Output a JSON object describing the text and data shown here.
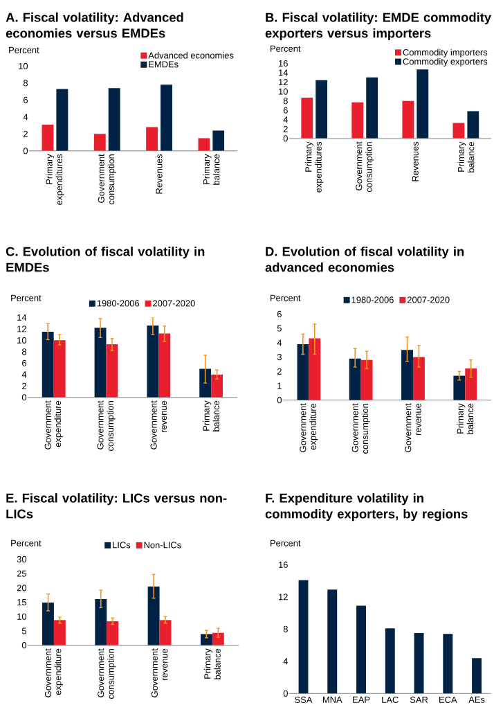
{
  "chart_data": [
    {
      "type": "bar",
      "title": "A. Fiscal volatility: Advanced economies versus EMDEs",
      "ylabel": "Percent",
      "categories": [
        "Primary expenditures",
        "Government consumption",
        "Revenues",
        "Primary balance"
      ],
      "series": [
        {
          "name": "Advanced economies",
          "color": "#e8202e",
          "values": [
            3.1,
            2.0,
            2.8,
            1.5
          ]
        },
        {
          "name": "EMDEs",
          "color": "#002345",
          "values": [
            7.3,
            7.4,
            7.8,
            2.4
          ]
        }
      ],
      "ylim": [
        0,
        10
      ],
      "yticks": [
        0,
        2,
        4,
        6,
        8,
        10
      ],
      "legend": "top right"
    },
    {
      "type": "bar",
      "title": "B. Fiscal volatility: EMDE commodity exporters versus importers",
      "ylabel": "Percent",
      "categories": [
        "Primary expenditures",
        "Government consumption",
        "Revenues",
        "Primary balance"
      ],
      "series": [
        {
          "name": "Commodity importers",
          "color": "#e8202e",
          "values": [
            8.7,
            7.7,
            8.0,
            3.3
          ]
        },
        {
          "name": "Commodity exporters",
          "color": "#002345",
          "values": [
            12.4,
            13.0,
            14.7,
            5.8
          ]
        }
      ],
      "ylim": [
        0,
        16
      ],
      "yticks": [
        0,
        2,
        4,
        6,
        8,
        10,
        12,
        14,
        16
      ],
      "legend": "top right"
    },
    {
      "type": "bar",
      "title": "C. Evolution of fiscal volatility in EMDEs",
      "ylabel": "Percent",
      "categories": [
        "Government expenditure",
        "Government consumption",
        "Government revenue",
        "Primary balance"
      ],
      "series": [
        {
          "name": "1980-2006",
          "color": "#002345",
          "values": [
            11.5,
            12.2,
            12.6,
            5.0
          ],
          "errors": [
            [
              10.1,
              12.9
            ],
            [
              10.5,
              13.8
            ],
            [
              11.0,
              14.0
            ],
            [
              2.5,
              7.4
            ]
          ]
        },
        {
          "name": "2007-2020",
          "color": "#e8202e",
          "values": [
            10.0,
            9.3,
            11.2,
            4.0
          ],
          "errors": [
            [
              9.2,
              11.0
            ],
            [
              8.2,
              10.3
            ],
            [
              9.8,
              12.5
            ],
            [
              3.2,
              4.8
            ]
          ]
        }
      ],
      "ylim": [
        0,
        14
      ],
      "yticks": [
        0,
        2,
        4,
        6,
        8,
        10,
        12,
        14
      ],
      "legend": "top"
    },
    {
      "type": "bar",
      "title": "D. Evolution of fiscal volatility in advanced economies",
      "ylabel": "Percent",
      "categories": [
        "Government expenditure",
        "Government consumption",
        "Government revenue",
        "Primary balance"
      ],
      "series": [
        {
          "name": "1980-2006",
          "color": "#002345",
          "values": [
            3.9,
            2.9,
            3.5,
            1.7
          ],
          "errors": [
            [
              3.2,
              4.6
            ],
            [
              2.3,
              3.6
            ],
            [
              2.7,
              4.4
            ],
            [
              1.4,
              2.0
            ]
          ]
        },
        {
          "name": "2007-2020",
          "color": "#e8202e",
          "values": [
            4.3,
            2.8,
            3.0,
            2.2
          ],
          "errors": [
            [
              3.2,
              5.3
            ],
            [
              2.2,
              3.4
            ],
            [
              2.3,
              3.8
            ],
            [
              1.6,
              2.8
            ]
          ]
        }
      ],
      "ylim": [
        0,
        6
      ],
      "yticks": [
        0,
        1,
        2,
        3,
        4,
        5,
        6
      ],
      "legend": "top"
    },
    {
      "type": "bar",
      "title": "E. Fiscal volatility: LICs versus non-LICs",
      "ylabel": "Percent",
      "categories": [
        "Government expenditure",
        "Government consumption",
        "Government revenue",
        "Primary balance"
      ],
      "series": [
        {
          "name": "LICs",
          "color": "#002345",
          "values": [
            14.9,
            16.1,
            20.5,
            3.9
          ],
          "errors": [
            [
              12.0,
              17.9
            ],
            [
              13.1,
              19.2
            ],
            [
              16.4,
              24.7
            ],
            [
              2.6,
              5.2
            ]
          ]
        },
        {
          "name": "Non-LICs",
          "color": "#e8202e",
          "values": [
            8.8,
            8.4,
            8.8,
            4.3
          ],
          "errors": [
            [
              7.7,
              9.8
            ],
            [
              7.3,
              9.5
            ],
            [
              7.7,
              10.0
            ],
            [
              2.8,
              5.9
            ]
          ]
        }
      ],
      "ylim": [
        0,
        30
      ],
      "yticks": [
        0,
        5,
        10,
        15,
        20,
        25,
        30
      ],
      "legend": "top"
    },
    {
      "type": "bar",
      "title": "F. Expenditure volatility in commodity exporters, by regions",
      "ylabel": "Percent",
      "categories": [
        "SSA",
        "MNA",
        "EAP",
        "LAC",
        "SAR",
        "ECA",
        "AEs"
      ],
      "series": [
        {
          "color": "#002345",
          "values": [
            14.1,
            12.9,
            10.9,
            8.1,
            7.5,
            7.4,
            4.4
          ]
        }
      ],
      "ylim": [
        0,
        16
      ],
      "yticks": [
        0,
        4,
        8,
        12,
        16
      ]
    }
  ]
}
